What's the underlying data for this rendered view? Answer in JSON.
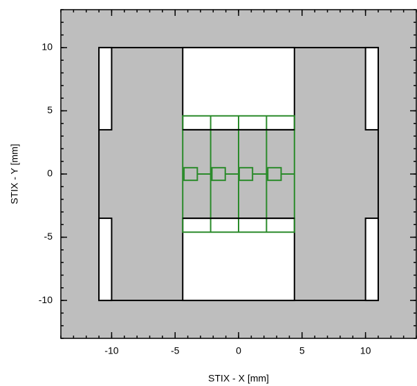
{
  "chart_data": {
    "type": "shapes",
    "xlabel": "STIX - X [mm]",
    "ylabel": "STIX - Y [mm]",
    "xlim": [
      -14,
      14
    ],
    "ylim": [
      -13,
      13
    ],
    "xticks": [
      -10,
      -5,
      0,
      5,
      10
    ],
    "yticks": [
      -10,
      -5,
      0,
      5,
      10
    ],
    "minor_step": 1,
    "background": "#bebebe",
    "rects": [
      {
        "x": [
          -11,
          11
        ],
        "y": [
          -10,
          10
        ],
        "fill": "none",
        "stroke": "#000000"
      },
      {
        "x": [
          -4.4,
          4.4
        ],
        "y": [
          3.5,
          10
        ],
        "fill": "#ffffff",
        "stroke": "#000000"
      },
      {
        "x": [
          -4.4,
          4.4
        ],
        "y": [
          -10,
          -3.5
        ],
        "fill": "#ffffff",
        "stroke": "#000000"
      },
      {
        "x": [
          -11,
          -10
        ],
        "y": [
          3.5,
          10
        ],
        "fill": "#ffffff",
        "stroke": "#000000"
      },
      {
        "x": [
          -11,
          -10
        ],
        "y": [
          -10,
          -3.5
        ],
        "fill": "#ffffff",
        "stroke": "#000000"
      },
      {
        "x": [
          10,
          11
        ],
        "y": [
          3.5,
          10
        ],
        "fill": "#ffffff",
        "stroke": "#000000"
      },
      {
        "x": [
          10,
          11
        ],
        "y": [
          -10,
          -3.5
        ],
        "fill": "#ffffff",
        "stroke": "#000000"
      },
      {
        "x": [
          -4.4,
          4.4
        ],
        "y": [
          -4.6,
          4.6
        ],
        "fill": "none",
        "stroke": "#2a8a2a"
      }
    ],
    "lines": [
      {
        "x": [
          -2.2,
          -2.2
        ],
        "y": [
          -4.6,
          4.6
        ],
        "color": "#2a8a2a"
      },
      {
        "x": [
          0,
          0
        ],
        "y": [
          -4.6,
          4.6
        ],
        "color": "#2a8a2a"
      },
      {
        "x": [
          2.2,
          2.2
        ],
        "y": [
          -4.6,
          4.6
        ],
        "color": "#2a8a2a"
      },
      {
        "x": [
          -4.4,
          4.4
        ],
        "y": [
          0,
          0
        ],
        "color": "#2a8a2a"
      },
      {
        "x": [
          -4.4,
          4.4
        ],
        "y": [
          3.5,
          3.5
        ],
        "color": "#000000"
      },
      {
        "x": [
          -4.4,
          4.4
        ],
        "y": [
          -3.5,
          -3.5
        ],
        "color": "#000000"
      }
    ],
    "pixels": [
      {
        "x": [
          -4.3,
          -3.25
        ],
        "y": [
          -0.5,
          0.5
        ],
        "fill": "#bebebe",
        "stroke": "#2a8a2a"
      },
      {
        "x": [
          -2.1,
          -1.05
        ],
        "y": [
          -0.5,
          0.5
        ],
        "fill": "#bebebe",
        "stroke": "#2a8a2a"
      },
      {
        "x": [
          0.05,
          1.1
        ],
        "y": [
          -0.5,
          0.5
        ],
        "fill": "#bebebe",
        "stroke": "#2a8a2a"
      },
      {
        "x": [
          2.3,
          3.35
        ],
        "y": [
          -0.5,
          0.5
        ],
        "fill": "#bebebe",
        "stroke": "#2a8a2a"
      }
    ]
  }
}
